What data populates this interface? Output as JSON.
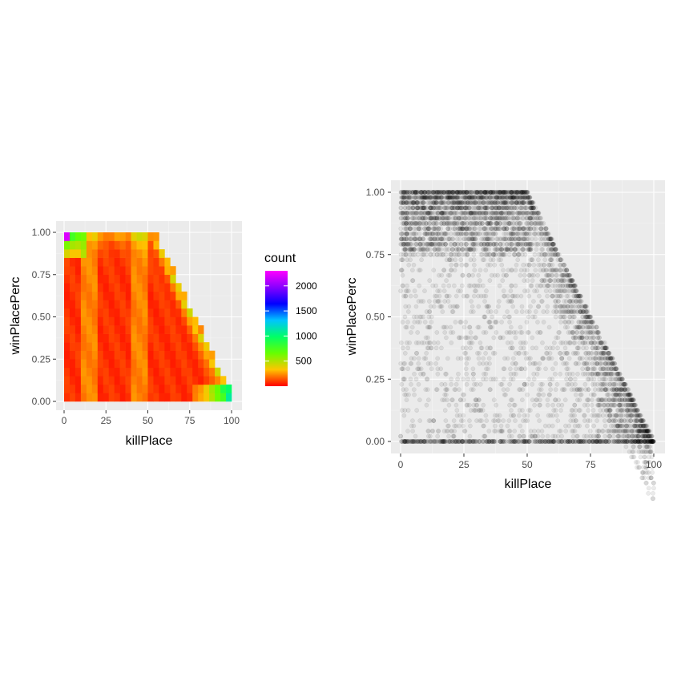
{
  "chart_data": [
    {
      "type": "heatmap",
      "xlabel": "killPlace",
      "ylabel": "winPlacePerc",
      "xlim": [
        0,
        100
      ],
      "ylim": [
        0,
        1
      ],
      "x_ticks": [
        "0",
        "25",
        "50",
        "75",
        "100"
      ],
      "y_ticks": [
        "0.00",
        "0.25",
        "0.50",
        "0.75",
        "1.00"
      ],
      "bins": {
        "x_count": 30,
        "y_count": 20
      },
      "legend": {
        "title": "count",
        "ticks": [
          "500",
          "1000",
          "1500",
          "2000"
        ],
        "range": [
          0,
          2300
        ],
        "colors": [
          "#ff0000",
          "#ffc400",
          "#66ff00",
          "#00ff66",
          "#00c4ff",
          "#0000ff",
          "#8800ff",
          "#ff00ff"
        ]
      },
      "notes": "Upper-left to lower-right triangular support: winPlacePerc max decreases as killPlace increases; highest counts near killPlace 0–5 at winPlacePerc 1.0 and along the diagonal edge near killPlace 85–95 at low winPlacePerc."
    },
    {
      "type": "scatter",
      "xlabel": "killPlace",
      "ylabel": "winPlacePerc",
      "xlim": [
        0,
        100
      ],
      "ylim": [
        0,
        1
      ],
      "x_ticks": [
        "0",
        "25",
        "50",
        "75",
        "100"
      ],
      "y_ticks": [
        "0.00",
        "0.25",
        "0.50",
        "0.75",
        "1.00"
      ],
      "point_color": "#000000",
      "alpha": 0.05,
      "edge_samples": [
        {
          "x": 50,
          "y": 1.0
        },
        {
          "x": 60,
          "y": 0.8
        },
        {
          "x": 70,
          "y": 0.6
        },
        {
          "x": 80,
          "y": 0.4
        },
        {
          "x": 90,
          "y": 0.2
        },
        {
          "x": 100,
          "y": 0.0
        }
      ]
    }
  ]
}
